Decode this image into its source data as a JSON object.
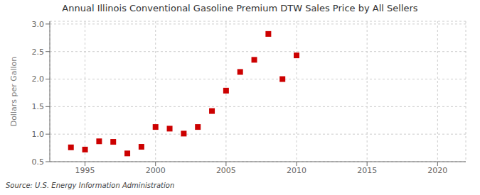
{
  "chart_data": {
    "type": "scatter",
    "title": "Annual Illinois Conventional Gasoline Premium DTW Sales Price by All Sellers",
    "y_label": "Dollars per Gallon",
    "source": "Source: U.S. Energy Information Administration",
    "x": [
      1994,
      1995,
      1996,
      1997,
      1998,
      1999,
      2000,
      2001,
      2002,
      2003,
      2004,
      2005,
      2006,
      2007,
      2008,
      2009,
      2010
    ],
    "values": [
      0.76,
      0.72,
      0.87,
      0.86,
      0.65,
      0.77,
      1.13,
      1.1,
      1.01,
      1.13,
      1.42,
      1.79,
      2.13,
      2.35,
      2.82,
      2.0,
      2.43
    ],
    "color": "#cc0000",
    "marker": "square",
    "xlim": [
      1992.5,
      2022
    ],
    "ylim": [
      0.5,
      3.05
    ],
    "xticks": [
      1995,
      2000,
      2005,
      2010,
      2015,
      2020
    ],
    "yticks": [
      0.5,
      {
        "value": 1.0,
        "label": "1.0"
      },
      1.5,
      {
        "value": 2.0,
        "label": "2.0"
      },
      2.5,
      {
        "value": 3.0,
        "label": "3.0"
      }
    ],
    "grid": true
  }
}
